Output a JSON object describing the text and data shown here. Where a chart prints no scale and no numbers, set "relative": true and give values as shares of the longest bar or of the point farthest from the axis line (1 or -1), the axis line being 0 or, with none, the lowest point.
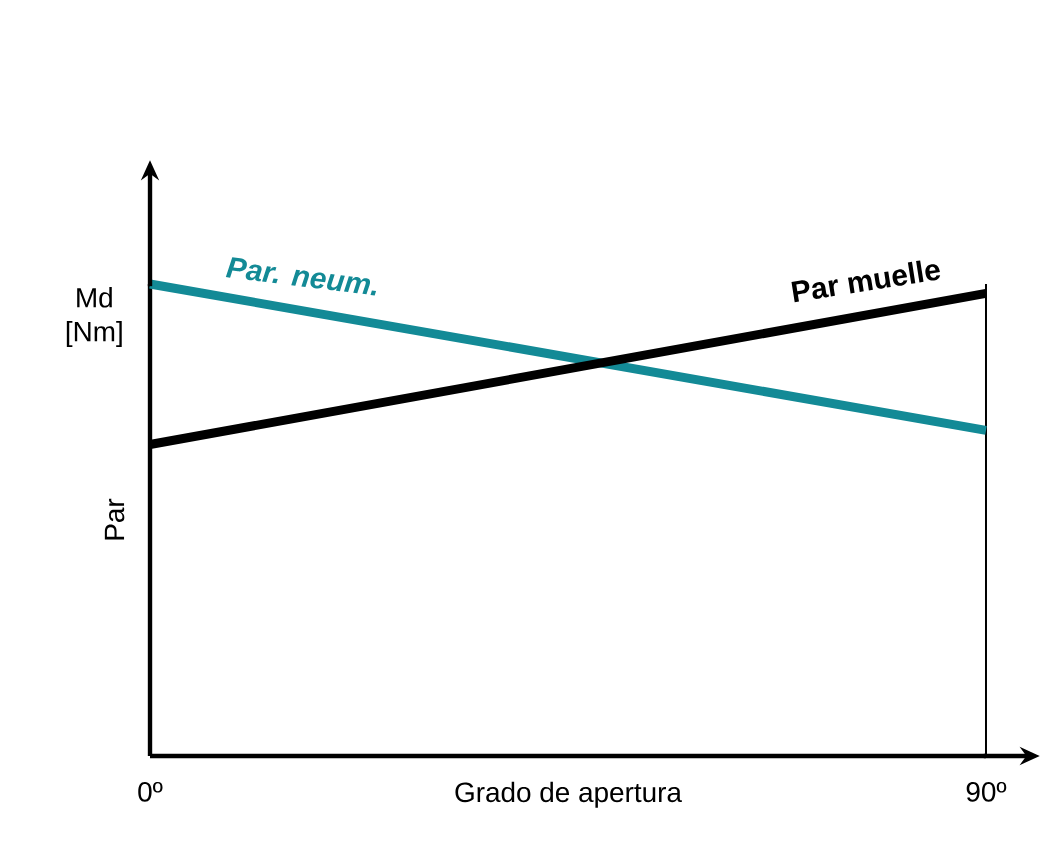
{
  "chart_data": {
    "type": "line",
    "relative": true,
    "xlabel": "Grado de apertura",
    "ylabel": "Par",
    "annotations": [
      "Md [Nm]"
    ],
    "x": [
      0,
      90
    ],
    "xlim": [
      0,
      90
    ],
    "xticks": [
      {
        "value": 0,
        "label": "0º"
      },
      {
        "value": 90,
        "label": "90º"
      }
    ],
    "tick_labels": "x",
    "legend": false,
    "marker": "none",
    "line_style": "solid",
    "ref_lines": [
      {
        "axis": "x",
        "value": 90,
        "color": "#000000"
      }
    ],
    "series": [
      {
        "name": "Par. neum.",
        "color": "#138a96",
        "values": [
          1,
          0.69
        ]
      },
      {
        "name": "Par muelle",
        "color": "#000000",
        "values": [
          0.66,
          0.98
        ]
      }
    ]
  }
}
